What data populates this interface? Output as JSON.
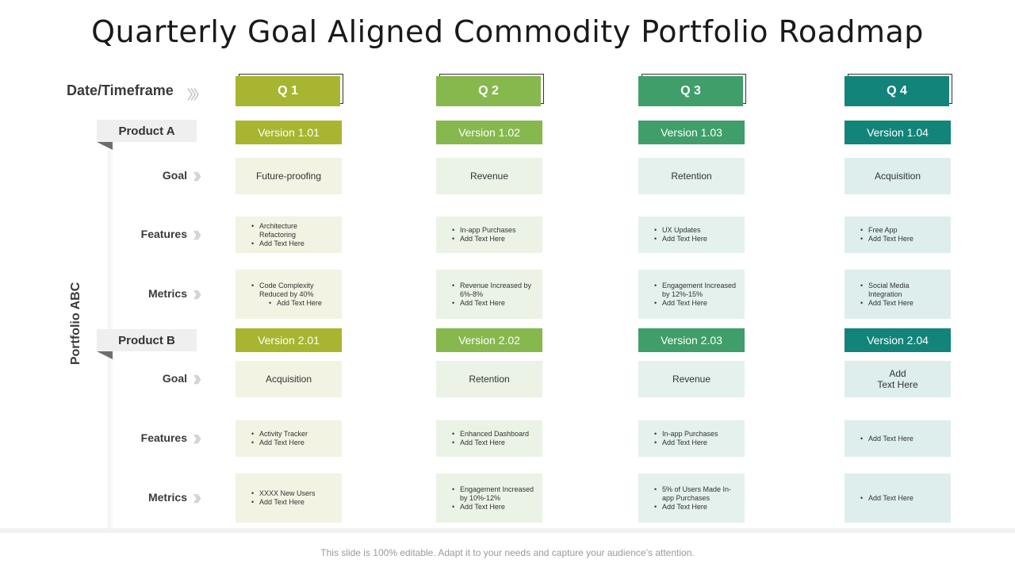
{
  "title": "Quarterly Goal Aligned Commodity Portfolio Roadmap",
  "timeframe_label": "Date/Timeframe",
  "portfolio_label": "Portfolio ABC",
  "colors": {
    "q1": "#a8b530",
    "q2": "#86b84e",
    "q3": "#3f9e6a",
    "q4": "#12847a",
    "cell_q1": "#f2f3e3",
    "cell_q2": "#eaf3e6",
    "cell_q3": "#e4f1ec",
    "cell_q4": "#ddeeed"
  },
  "quarters": [
    "Q 1",
    "Q 2",
    "Q 3",
    "Q 4"
  ],
  "row_labels": {
    "goal": "Goal",
    "features": "Features",
    "metrics": "Metrics"
  },
  "products": [
    {
      "name": "Product A",
      "versions": [
        "Version 1.01",
        "Version 1.02",
        "Version 1.03",
        "Version 1.04"
      ],
      "goals": [
        "Future-proofing",
        "Revenue",
        "Retention",
        "Acquisition"
      ],
      "features": [
        [
          "Architecture Refactoring",
          "Add Text Here"
        ],
        [
          "In-app Purchases",
          "Add Text Here"
        ],
        [
          "UX Updates",
          "Add Text Here"
        ],
        [
          "Free App",
          "Add Text Here"
        ]
      ],
      "metrics": [
        [
          "Code Complexity Reduced by 40%",
          "Add Text Here"
        ],
        [
          "Revenue Increased by 6%-8%",
          "Add Text Here"
        ],
        [
          "Engagement Increased by 12%-15%",
          "Add Text Here"
        ],
        [
          "Social Media Integration",
          "Add Text Here"
        ]
      ]
    },
    {
      "name": "Product  B",
      "versions": [
        "Version 2.01",
        "Version 2.02",
        "Version 2.03",
        "Version 2.04"
      ],
      "goals": [
        "Acquisition",
        "Retention",
        "Revenue",
        "Add\nText Here"
      ],
      "features": [
        [
          "Activity Tracker",
          "Add Text Here"
        ],
        [
          "Enhanced Dashboard",
          "Add Text Here"
        ],
        [
          "In-app Purchases",
          "Add Text Here"
        ],
        [
          "Add Text Here"
        ]
      ],
      "metrics": [
        [
          "XXXX  New Users",
          "Add Text Here"
        ],
        [
          "Engagement Increased by 10%-12%",
          "Add Text Here"
        ],
        [
          "5% of Users Made In-app Purchases",
          "Add Text Here"
        ],
        [
          "Add Text Here"
        ]
      ]
    }
  ],
  "footer": "This slide is 100% editable. Adapt it to your needs and capture your audience’s attention."
}
